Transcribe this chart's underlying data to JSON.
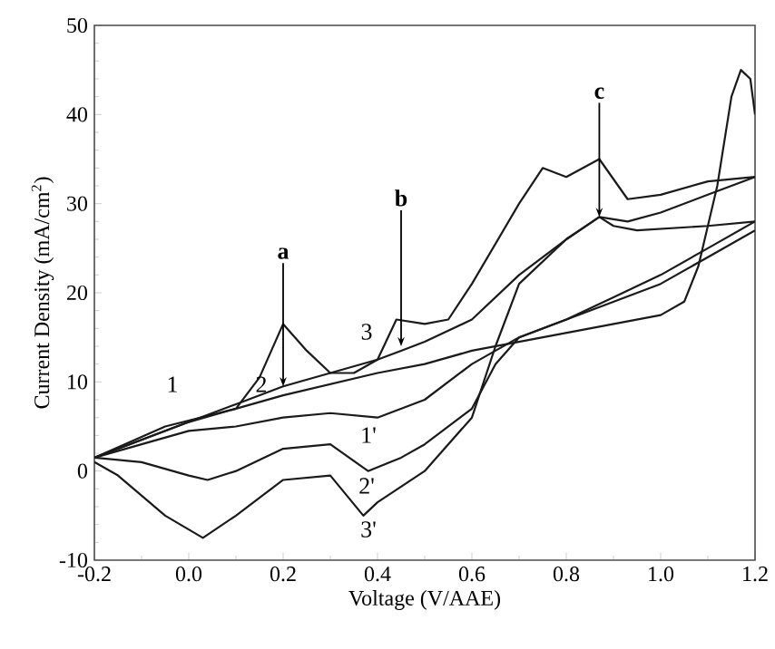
{
  "chart_data": {
    "type": "line",
    "xlabel": "Voltage (V/AAE)",
    "ylabel": "Current Density (mA/cm$^{2}$)",
    "xlim": [
      -0.2,
      1.2
    ],
    "ylim": [
      -10,
      50
    ],
    "xticks": [
      {
        "value": -0.2,
        "label": "-0.2"
      },
      {
        "value": 0,
        "label": "0.0"
      },
      0.2,
      0.4,
      0.6,
      0.8,
      {
        "value": 1,
        "label": "1.0"
      },
      1.2
    ],
    "yticks": [
      -10,
      0,
      10,
      20,
      30,
      40,
      50
    ],
    "grid": false,
    "marker": "none",
    "line_style": "solid",
    "series": [
      {
        "color": "#1a1a1a",
        "x": [
          -0.2,
          -0.05,
          0.1,
          0.2,
          0.4,
          0.5,
          0.6,
          0.7,
          0.8,
          0.9,
          1.0,
          1.05,
          1.08,
          1.12,
          1.15,
          1.17,
          1.19,
          1.2
        ],
        "values": [
          1.5,
          5,
          7,
          8.5,
          11,
          12,
          13.5,
          14.5,
          15.5,
          16.5,
          17.5,
          19,
          23,
          32,
          42,
          45,
          44,
          40
        ]
      },
      {
        "color": "#1a1a1a",
        "x": [
          1.2,
          1.1,
          1.0,
          0.9,
          0.8,
          0.7,
          0.6,
          0.5,
          0.4,
          0.3,
          0.2,
          0.1,
          0.0,
          -0.1,
          -0.2
        ],
        "values": [
          27,
          24,
          21,
          19,
          17,
          15,
          12,
          8,
          6,
          6.5,
          6,
          5,
          4.5,
          3,
          1.5
        ]
      },
      {
        "color": "#1a1a1a",
        "x": [
          -0.2,
          0.0,
          0.1,
          0.2,
          0.3,
          0.4,
          0.45,
          0.5,
          0.6,
          0.7,
          0.8,
          0.87,
          0.9,
          0.95,
          1.1,
          1.2
        ],
        "values": [
          1.5,
          5.5,
          7.5,
          9.5,
          11,
          12.5,
          13.5,
          14.5,
          17,
          22,
          26,
          28.5,
          27.5,
          27,
          27.5,
          28
        ]
      },
      {
        "color": "#1a1a1a",
        "x": [
          1.2,
          1.1,
          1.0,
          0.9,
          0.8,
          0.7,
          0.65,
          0.6,
          0.5,
          0.45,
          0.38,
          0.3,
          0.2,
          0.1,
          0.04,
          0.0,
          -0.1,
          -0.2
        ],
        "values": [
          28,
          25,
          22,
          19.5,
          17,
          15,
          12,
          7,
          3,
          1.5,
          0,
          3,
          2.5,
          0,
          -1,
          -0.5,
          1,
          1.5
        ]
      },
      {
        "color": "#1a1a1a",
        "x": [
          -0.2,
          0.0,
          0.1,
          0.15,
          0.2,
          0.25,
          0.3,
          0.35,
          0.4,
          0.44,
          0.5,
          0.55,
          0.6,
          0.7,
          0.75,
          0.8,
          0.87,
          0.93,
          1.0,
          1.1,
          1.2
        ],
        "values": [
          1.5,
          5.5,
          7,
          10.5,
          16.5,
          13.5,
          11,
          11,
          12.5,
          17,
          16.5,
          17,
          21,
          30,
          34,
          33,
          35,
          30.5,
          31,
          32.5,
          33
        ]
      },
      {
        "color": "#1a1a1a",
        "x": [
          1.2,
          1.1,
          1.0,
          0.93,
          0.87,
          0.8,
          0.7,
          0.65,
          0.6,
          0.5,
          0.4,
          0.37,
          0.3,
          0.2,
          0.1,
          0.03,
          -0.05,
          -0.15,
          -0.2
        ],
        "values": [
          33,
          31,
          29,
          28,
          28.5,
          26,
          21,
          14,
          6,
          0,
          -3.5,
          -5,
          -0.5,
          -1,
          -5,
          -7.5,
          -5,
          -0.5,
          1
        ]
      }
    ],
    "annotations": [
      {
        "text": "a",
        "x": 0.2,
        "y": 9.5
      },
      {
        "text": "b",
        "x": 0.45,
        "y": 14
      },
      {
        "text": "c",
        "x": 0.87,
        "y": 28.5
      },
      "1",
      "2",
      "3",
      "1'",
      "2'",
      "3'"
    ]
  }
}
